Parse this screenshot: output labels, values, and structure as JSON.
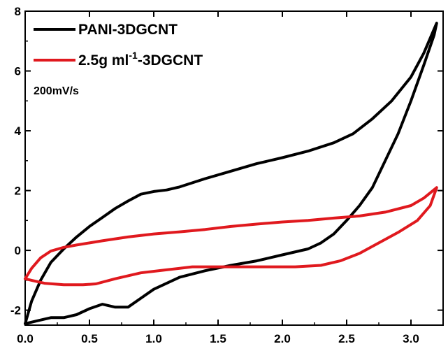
{
  "chart_data": {
    "type": "line",
    "title": "",
    "xlabel": "",
    "ylabel": "",
    "xlim": [
      0.0,
      3.25
    ],
    "ylim": [
      -2.5,
      8
    ],
    "xticks": [
      0.0,
      0.5,
      1.0,
      1.5,
      2.0,
      2.5,
      3.0
    ],
    "xtick_labels": [
      "0.0",
      "0.5",
      "1.0",
      "1.5",
      "2.0",
      "2.5",
      "3.0"
    ],
    "yticks": [
      -2,
      0,
      2,
      4,
      6,
      8
    ],
    "ytick_labels": [
      "-2",
      "0",
      "2",
      "4",
      "6",
      "8"
    ],
    "grid": false,
    "legend_position": "top-left",
    "annotation": "200mV/s",
    "series": [
      {
        "name": "PANI-3DGCNT",
        "color": "#000000",
        "points": [
          [
            0.0,
            -2.45
          ],
          [
            0.05,
            -1.7
          ],
          [
            0.12,
            -1.0
          ],
          [
            0.2,
            -0.4
          ],
          [
            0.3,
            0.05
          ],
          [
            0.4,
            0.45
          ],
          [
            0.5,
            0.8
          ],
          [
            0.6,
            1.1
          ],
          [
            0.7,
            1.4
          ],
          [
            0.8,
            1.65
          ],
          [
            0.9,
            1.88
          ],
          [
            1.0,
            1.97
          ],
          [
            1.1,
            2.02
          ],
          [
            1.2,
            2.12
          ],
          [
            1.4,
            2.4
          ],
          [
            1.6,
            2.65
          ],
          [
            1.8,
            2.9
          ],
          [
            2.0,
            3.1
          ],
          [
            2.2,
            3.32
          ],
          [
            2.4,
            3.6
          ],
          [
            2.55,
            3.9
          ],
          [
            2.7,
            4.4
          ],
          [
            2.85,
            5.0
          ],
          [
            3.0,
            5.8
          ],
          [
            3.1,
            6.6
          ],
          [
            3.2,
            7.6
          ],
          [
            3.18,
            7.2
          ],
          [
            3.1,
            6.2
          ],
          [
            3.0,
            5.0
          ],
          [
            2.9,
            3.9
          ],
          [
            2.8,
            3.0
          ],
          [
            2.7,
            2.1
          ],
          [
            2.6,
            1.5
          ],
          [
            2.5,
            1.0
          ],
          [
            2.4,
            0.55
          ],
          [
            2.3,
            0.25
          ],
          [
            2.2,
            0.05
          ],
          [
            2.0,
            -0.15
          ],
          [
            1.8,
            -0.35
          ],
          [
            1.6,
            -0.5
          ],
          [
            1.4,
            -0.68
          ],
          [
            1.2,
            -0.9
          ],
          [
            1.0,
            -1.3
          ],
          [
            0.9,
            -1.6
          ],
          [
            0.8,
            -1.9
          ],
          [
            0.7,
            -1.9
          ],
          [
            0.6,
            -1.8
          ],
          [
            0.5,
            -1.95
          ],
          [
            0.4,
            -2.15
          ],
          [
            0.3,
            -2.25
          ],
          [
            0.2,
            -2.25
          ],
          [
            0.1,
            -2.35
          ],
          [
            0.0,
            -2.45
          ]
        ]
      },
      {
        "name": "2.5g ml-1-3DGCNT",
        "color": "#e0191e",
        "points": [
          [
            0.0,
            -0.95
          ],
          [
            0.05,
            -0.6
          ],
          [
            0.12,
            -0.25
          ],
          [
            0.2,
            -0.02
          ],
          [
            0.3,
            0.1
          ],
          [
            0.4,
            0.18
          ],
          [
            0.6,
            0.32
          ],
          [
            0.8,
            0.45
          ],
          [
            1.0,
            0.55
          ],
          [
            1.2,
            0.62
          ],
          [
            1.4,
            0.7
          ],
          [
            1.6,
            0.8
          ],
          [
            1.8,
            0.88
          ],
          [
            2.0,
            0.95
          ],
          [
            2.2,
            1.0
          ],
          [
            2.4,
            1.08
          ],
          [
            2.6,
            1.15
          ],
          [
            2.8,
            1.28
          ],
          [
            3.0,
            1.5
          ],
          [
            3.1,
            1.75
          ],
          [
            3.2,
            2.1
          ],
          [
            3.15,
            1.5
          ],
          [
            3.05,
            1.0
          ],
          [
            2.9,
            0.6
          ],
          [
            2.75,
            0.25
          ],
          [
            2.6,
            -0.1
          ],
          [
            2.45,
            -0.35
          ],
          [
            2.3,
            -0.5
          ],
          [
            2.1,
            -0.55
          ],
          [
            1.9,
            -0.55
          ],
          [
            1.7,
            -0.55
          ],
          [
            1.5,
            -0.55
          ],
          [
            1.3,
            -0.55
          ],
          [
            1.1,
            -0.65
          ],
          [
            0.9,
            -0.75
          ],
          [
            0.7,
            -0.95
          ],
          [
            0.55,
            -1.12
          ],
          [
            0.45,
            -1.15
          ],
          [
            0.3,
            -1.15
          ],
          [
            0.15,
            -1.1
          ],
          [
            0.05,
            -1.0
          ],
          [
            0.0,
            -0.95
          ]
        ]
      }
    ]
  },
  "legend": {
    "entries": [
      {
        "name": "PANI-3DGCNT",
        "color": "#000000",
        "label_main": "PANI-3DGCNT",
        "label_sup": ""
      },
      {
        "name": "2.5g ml-1-3DGCNT",
        "color": "#e0191e",
        "label_main": "2.5g ml",
        "label_sup": "-1",
        "label_tail": "-3DGCNT"
      }
    ]
  }
}
